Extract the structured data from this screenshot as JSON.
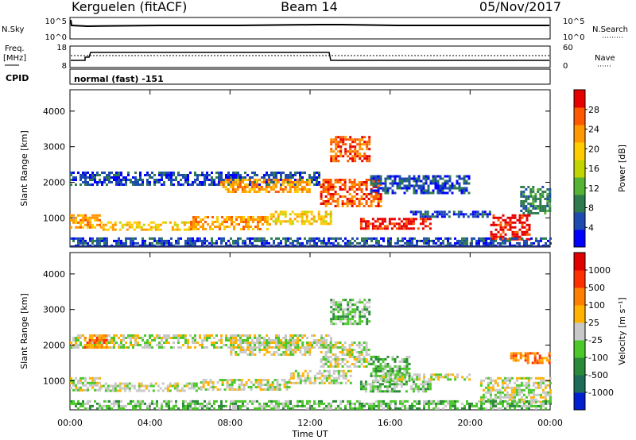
{
  "header": {
    "station": "Kerguelen (fitACF)",
    "beam": "Beam 14",
    "date": "05/Nov/2017"
  },
  "nsky_panel": {
    "left_label": "N.Sky",
    "right_label": "N.Search",
    "left_ticks": [
      "10^5",
      "10^0"
    ],
    "right_ticks": [
      "10^5",
      "10^0"
    ]
  },
  "freq_panel": {
    "left_label": "Freq.",
    "left_unit": "[MHz]",
    "right_label": "Nave",
    "left_ticks": [
      "18",
      "8"
    ],
    "right_ticks": [
      "60",
      "0"
    ]
  },
  "cpid_panel": {
    "label": "CPID",
    "mode": "normal (fast) -151"
  },
  "chart_data": [
    {
      "type": "heatmap",
      "name": "power",
      "ylabel": "Slant Range [km]",
      "ylim": [
        180,
        4600
      ],
      "yticks": [
        "1000",
        "2000",
        "3000",
        "4000"
      ],
      "colorbar_label": "Power [dB]",
      "colorbar_ticks": [
        "28",
        "24",
        "20",
        "16",
        "12",
        "8",
        "4"
      ],
      "colors": [
        "#0000ff",
        "#1d4bb0",
        "#2e7b4e",
        "#55b435",
        "#c3d500",
        "#ffcc00",
        "#ff9900",
        "#ff5a00",
        "#e60000"
      ],
      "regions_hours_km_level": [
        [
          0.0,
          12.5,
          1900,
          2300,
          1
        ],
        [
          0.0,
          1.5,
          700,
          1100,
          6
        ],
        [
          1.5,
          6.0,
          650,
          900,
          5
        ],
        [
          6.0,
          10.0,
          700,
          1050,
          6
        ],
        [
          10.0,
          13.0,
          800,
          1200,
          5
        ],
        [
          7.5,
          12.0,
          1700,
          2100,
          6
        ],
        [
          12.5,
          15.5,
          1300,
          2100,
          7
        ],
        [
          13.0,
          15.0,
          2600,
          3300,
          7
        ],
        [
          15.0,
          20.0,
          1700,
          2200,
          1
        ],
        [
          14.5,
          18.0,
          700,
          1000,
          8
        ],
        [
          17.0,
          21.0,
          1000,
          1200,
          1
        ],
        [
          21.0,
          23.0,
          400,
          1100,
          8
        ],
        [
          22.5,
          24.0,
          1100,
          1900,
          2
        ],
        [
          0.0,
          24.0,
          200,
          450,
          1
        ]
      ]
    },
    {
      "type": "heatmap",
      "name": "velocity",
      "xlabel": "Time UT",
      "ylabel": "Slant Range [km]",
      "ylim": [
        180,
        4600
      ],
      "xticks": [
        "00:00",
        "04:00",
        "08:00",
        "12:00",
        "16:00",
        "20:00",
        "00:00"
      ],
      "yticks": [
        "1000",
        "2000",
        "3000",
        "4000"
      ],
      "colorbar_label": "Velocity [m s⁻¹]",
      "colorbar_ticks": [
        "1000",
        "500",
        "100",
        "25",
        "-25",
        "-100",
        "-500",
        "-1000"
      ],
      "colors": [
        "#0020d0",
        "#1e6b5a",
        "#2b8a3a",
        "#4cc82b",
        "#c8c8c8",
        "#ffb300",
        "#ff8000",
        "#ff3000",
        "#e00000"
      ],
      "regions_hours_km_level": [
        [
          0.0,
          13.0,
          1900,
          2300,
          4
        ],
        [
          0.0,
          1.5,
          700,
          1100,
          4
        ],
        [
          1.5,
          6.5,
          700,
          950,
          4
        ],
        [
          6.5,
          11.0,
          750,
          1050,
          4
        ],
        [
          11.0,
          14.0,
          900,
          1300,
          4
        ],
        [
          8.0,
          12.0,
          1700,
          2100,
          4
        ],
        [
          12.5,
          15.0,
          1400,
          2100,
          4
        ],
        [
          13.0,
          15.0,
          2600,
          3300,
          3
        ],
        [
          14.5,
          18.0,
          700,
          1000,
          3
        ],
        [
          15.0,
          17.0,
          1000,
          1700,
          3
        ],
        [
          15.5,
          20.0,
          1000,
          1200,
          4
        ],
        [
          0.7,
          1.8,
          1900,
          2300,
          6
        ],
        [
          20.5,
          24.0,
          400,
          1100,
          4
        ],
        [
          22.0,
          24.0,
          1500,
          1800,
          6
        ],
        [
          0.0,
          24.0,
          200,
          450,
          3
        ]
      ]
    }
  ]
}
